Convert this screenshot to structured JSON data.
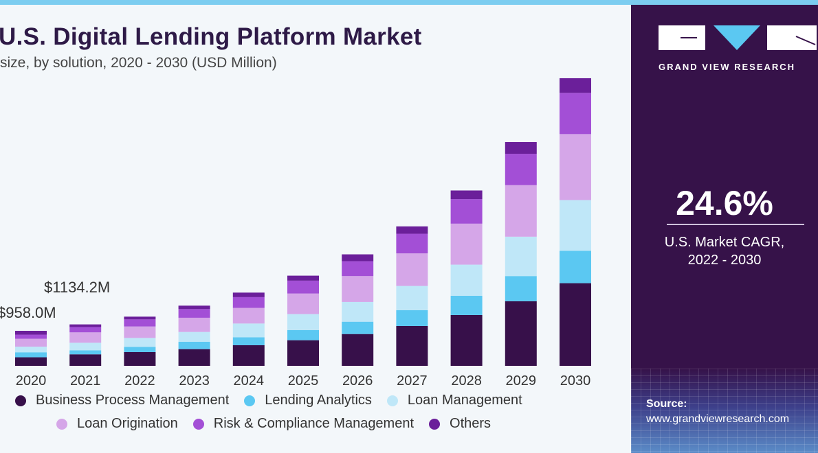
{
  "header": {
    "title": "U.S. Digital Lending Platform Market",
    "subtitle": "size, by solution, 2020 - 2030 (USD Million)"
  },
  "sidebar": {
    "brand": "GRAND VIEW RESEARCH",
    "cagr_value": "24.6%",
    "cagr_label_line1": "U.S. Market CAGR,",
    "cagr_label_line2": "2022 - 2030",
    "source_label": "Source:",
    "source_url": "www.grandviewresearch.com"
  },
  "colors": {
    "title": "#2e1a47",
    "panel": "#361249",
    "accent": "#5bc8f2"
  },
  "chart_data": {
    "type": "bar",
    "stacked": true,
    "categories": [
      "2020",
      "2021",
      "2022",
      "2023",
      "2024",
      "2025",
      "2026",
      "2027",
      "2028",
      "2029",
      "2030"
    ],
    "series": [
      {
        "name": "Business Process Management",
        "color": "#37104a",
        "values": [
          234,
          315,
          376,
          457,
          564,
          701,
          870,
          1090,
          1391,
          1767,
          2262
        ]
      },
      {
        "name": "Lending Analytics",
        "color": "#5bc8f2",
        "values": [
          137,
          108,
          143,
          201,
          218,
          276,
          338,
          432,
          526,
          690,
          884
        ]
      },
      {
        "name": "Loan Management",
        "color": "#bfe7f8",
        "values": [
          154,
          208,
          244,
          269,
          376,
          438,
          540,
          664,
          852,
          1077,
          1391
        ]
      },
      {
        "name": "Loan Origination",
        "color": "#d5a6e8",
        "values": [
          217,
          285,
          314,
          389,
          427,
          564,
          709,
          891,
          1122,
          1410,
          1805
        ]
      },
      {
        "name": "Risk & Compliance Management",
        "color": "#a34fd6",
        "values": [
          112,
          146,
          194,
          237,
          295,
          352,
          406,
          538,
          671,
          859,
          1128
        ]
      },
      {
        "name": "Others",
        "color": "#6b1f9a",
        "values": [
          104,
          72,
          75,
          94,
          124,
          137,
          188,
          201,
          237,
          320,
          401
        ]
      }
    ],
    "data_labels": [
      {
        "category": "2020",
        "text": "$958.0M"
      },
      {
        "category": "2021",
        "text": "$1134.2M"
      }
    ],
    "xlabel": "",
    "ylabel": "",
    "ylim": [
      0,
      7870
    ],
    "grid": false,
    "legend_position": "bottom"
  }
}
